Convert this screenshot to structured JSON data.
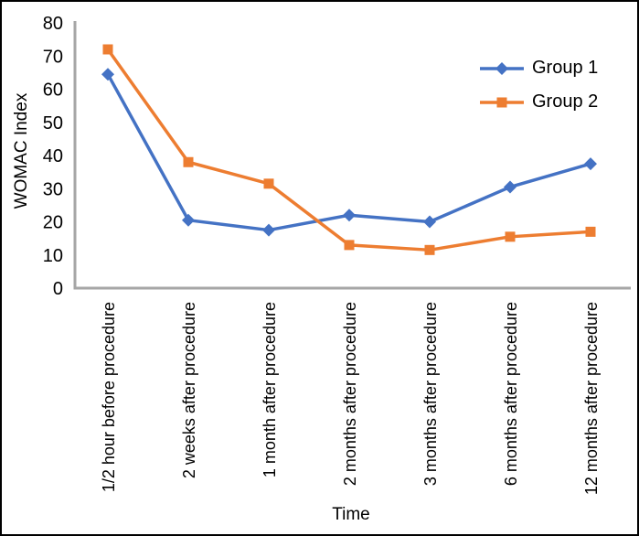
{
  "figure": {
    "background": "#ffffff",
    "border_color": "#000000"
  },
  "chart_data": {
    "type": "line",
    "title": "",
    "xlabel": "Time",
    "ylabel": "WOMAC Index",
    "ylim": [
      0,
      80
    ],
    "ytick_step": 10,
    "ytick_labels": [
      "0",
      "10",
      "20",
      "30",
      "40",
      "50",
      "60",
      "70",
      "80"
    ],
    "categories": [
      "1/2 hour before procedure",
      "2 weeks after procedure",
      "1 month after procedure",
      "2 months after procedure",
      "3 months after procedure",
      "6 months after procedure",
      "12 months after procedure"
    ],
    "series": [
      {
        "name": "Group 1",
        "color": "#4472C4",
        "marker": "diamond",
        "values": [
          64.5,
          20.5,
          17.5,
          22,
          20,
          30.5,
          37.5
        ]
      },
      {
        "name": "Group 2",
        "color": "#ED7D31",
        "marker": "square",
        "values": [
          72,
          38,
          31.5,
          13,
          11.5,
          15.5,
          17
        ]
      }
    ],
    "axis_color": "#A6A6A6",
    "text_color": "#000000",
    "grid": false,
    "legend_position": "upper-right"
  }
}
